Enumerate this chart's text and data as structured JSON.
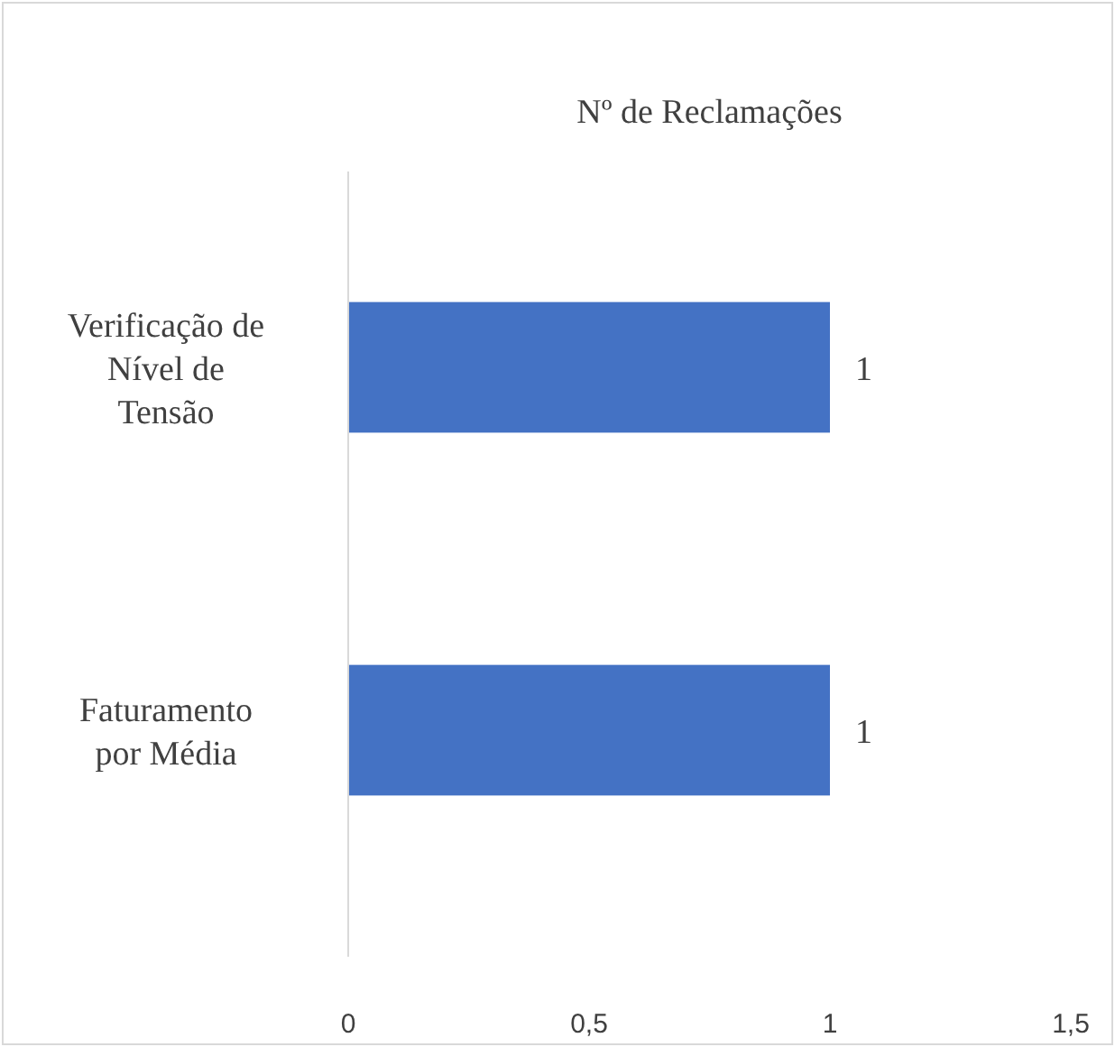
{
  "chart_data": {
    "type": "bar",
    "orientation": "horizontal",
    "title": "Nº de Reclamações",
    "categories": [
      "Verificação de Nível de Tensão",
      "Faturamento por Média"
    ],
    "values": [
      1,
      1
    ],
    "color": "#4472c4",
    "data_labels": true,
    "grid": false,
    "xlim": [
      0,
      1.5
    ],
    "xticks": [
      0,
      {
        "value": 0.5,
        "label": "0,5"
      },
      1,
      {
        "value": 1.5,
        "label": "1,5"
      }
    ]
  }
}
